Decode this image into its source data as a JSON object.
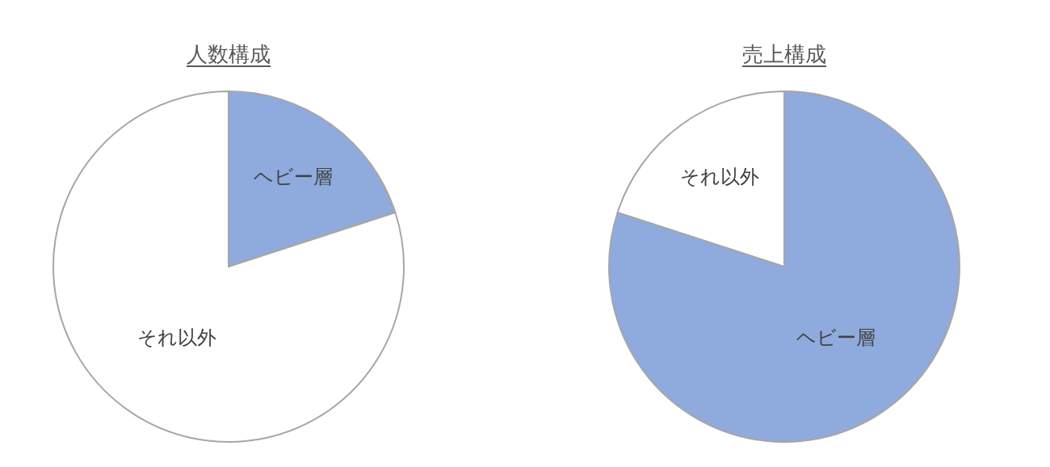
{
  "chart_data": [
    {
      "type": "pie",
      "title": "人数構成",
      "categories": [
        "ヘビー層",
        "それ以外"
      ],
      "values": [
        20,
        80
      ],
      "colors": [
        "#8faadc",
        "#ffffff"
      ]
    },
    {
      "type": "pie",
      "title": "売上構成",
      "categories": [
        "ヘビー層",
        "それ以外"
      ],
      "values": [
        80,
        20
      ],
      "colors": [
        "#8faadc",
        "#ffffff"
      ]
    }
  ]
}
